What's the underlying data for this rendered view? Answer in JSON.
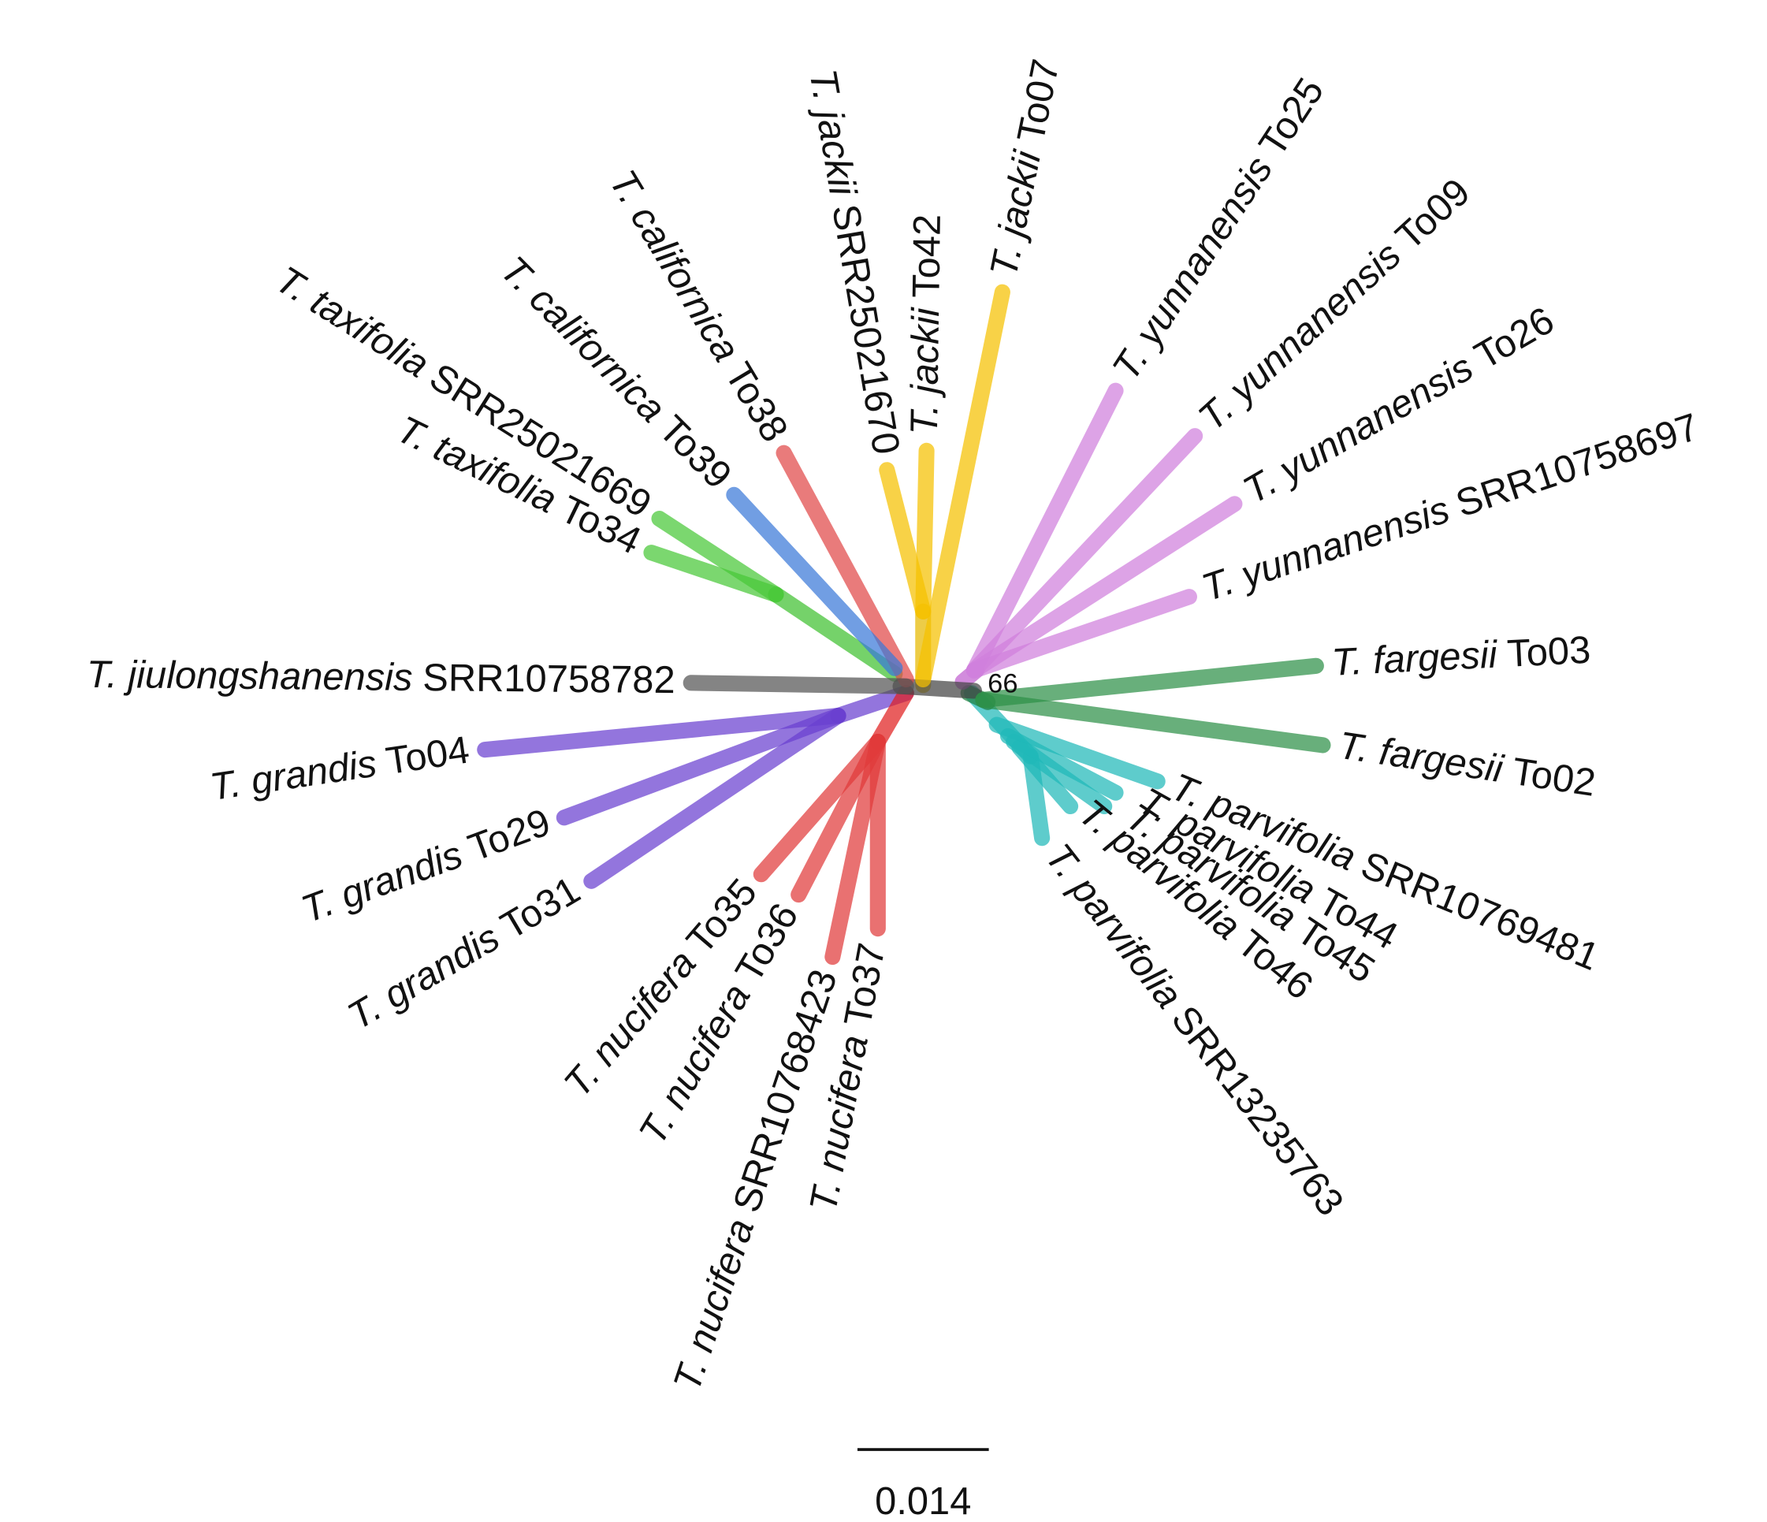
{
  "tree": {
    "leaves": [
      {
        "species": "T. jackii",
        "id": "To07"
      },
      {
        "species": "T. jackii",
        "id": "To42"
      },
      {
        "species": "T. jackii",
        "id": "SRR25021670"
      },
      {
        "species": "T. californica",
        "id": "To38"
      },
      {
        "species": "T. californica",
        "id": "To39"
      },
      {
        "species": "T. taxifolia",
        "id": "SRR25021669"
      },
      {
        "species": "T. taxifolia",
        "id": "To34"
      },
      {
        "species": "T. jiulongshanensis",
        "id": "SRR10758782"
      },
      {
        "species": "T. grandis",
        "id": "To04"
      },
      {
        "species": "T. grandis",
        "id": "To29"
      },
      {
        "species": "T. grandis",
        "id": "To31"
      },
      {
        "species": "T. nucifera",
        "id": "To35"
      },
      {
        "species": "T. nucifera",
        "id": "To36"
      },
      {
        "species": "T. nucifera",
        "id": "SRR10768423"
      },
      {
        "species": "T. nucifera",
        "id": "To37"
      },
      {
        "species": "T. parvifolia",
        "id": "SRR13235763"
      },
      {
        "species": "T. parvifolia",
        "id": "To46"
      },
      {
        "species": "T. parvifolia",
        "id": "To45"
      },
      {
        "species": "T. parvifolia",
        "id": "To44"
      },
      {
        "species": "T. parvifolia",
        "id": "SRR10769481"
      },
      {
        "species": "T. fargesii",
        "id": "To02"
      },
      {
        "species": "T. fargesii",
        "id": "To03"
      },
      {
        "species": "T. yunnanensis",
        "id": "SRR10758697"
      },
      {
        "species": "T. yunnanensis",
        "id": "To26"
      },
      {
        "species": "T. yunnanensis",
        "id": "To09"
      },
      {
        "species": "T. yunnanensis",
        "id": "To25"
      }
    ],
    "bootstrap": "66",
    "scale_bar": "0.014"
  }
}
